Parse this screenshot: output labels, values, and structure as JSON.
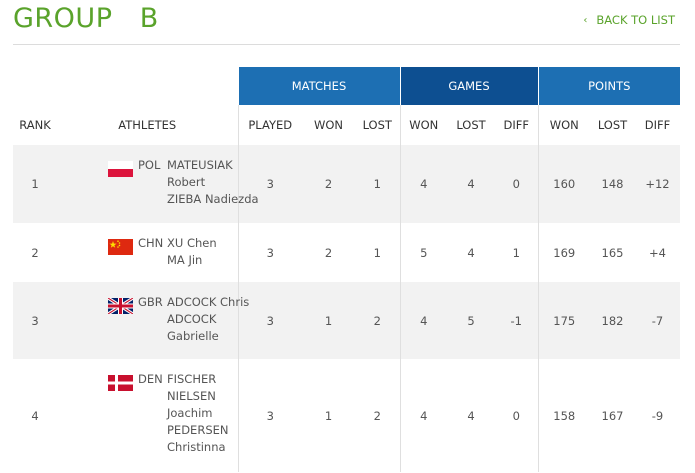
{
  "page": {
    "title": "GROUP   B",
    "back_label": "BACK TO LIST",
    "back_icon": "chevron-left-icon"
  },
  "groups": {
    "matches": "MATCHES",
    "games": "GAMES",
    "points": "POINTS"
  },
  "columns": {
    "rank": "RANK",
    "athletes": "ATHLETES",
    "played": "PLAYED",
    "m_won": "WON",
    "m_lost": "LOST",
    "g_won": "WON",
    "g_lost": "LOST",
    "g_diff": "DIFF",
    "p_won": "WON",
    "p_lost": "LOST",
    "p_diff": "DIFF"
  },
  "colors": {
    "title_green": "#5aa32b",
    "header_blue": "#1d6fb3",
    "header_dark_blue": "#0d4f91"
  },
  "rows": [
    {
      "rank": "1",
      "flag": "poland-flag-icon",
      "noc": "POL",
      "names": [
        "MATEUSIAK",
        "Robert",
        "ZIEBA Nadiezda"
      ],
      "played": "3",
      "m_won": "2",
      "m_lost": "1",
      "g_won": "4",
      "g_lost": "4",
      "g_diff": "0",
      "p_won": "160",
      "p_lost": "148",
      "p_diff": "+12"
    },
    {
      "rank": "2",
      "flag": "china-flag-icon",
      "noc": "CHN",
      "names": [
        "XU Chen",
        "MA Jin"
      ],
      "played": "3",
      "m_won": "2",
      "m_lost": "1",
      "g_won": "5",
      "g_lost": "4",
      "g_diff": "1",
      "p_won": "169",
      "p_lost": "165",
      "p_diff": "+4"
    },
    {
      "rank": "3",
      "flag": "great-britain-flag-icon",
      "noc": "GBR",
      "names": [
        "ADCOCK Chris",
        "ADCOCK",
        "Gabrielle"
      ],
      "played": "3",
      "m_won": "1",
      "m_lost": "2",
      "g_won": "4",
      "g_lost": "5",
      "g_diff": "-1",
      "p_won": "175",
      "p_lost": "182",
      "p_diff": "-7"
    },
    {
      "rank": "4",
      "flag": "denmark-flag-icon",
      "noc": "DEN",
      "names": [
        "FISCHER",
        "NIELSEN",
        "Joachim",
        "PEDERSEN",
        "Christinna"
      ],
      "played": "3",
      "m_won": "1",
      "m_lost": "2",
      "g_won": "4",
      "g_lost": "4",
      "g_diff": "0",
      "p_won": "158",
      "p_lost": "167",
      "p_diff": "-9"
    }
  ]
}
